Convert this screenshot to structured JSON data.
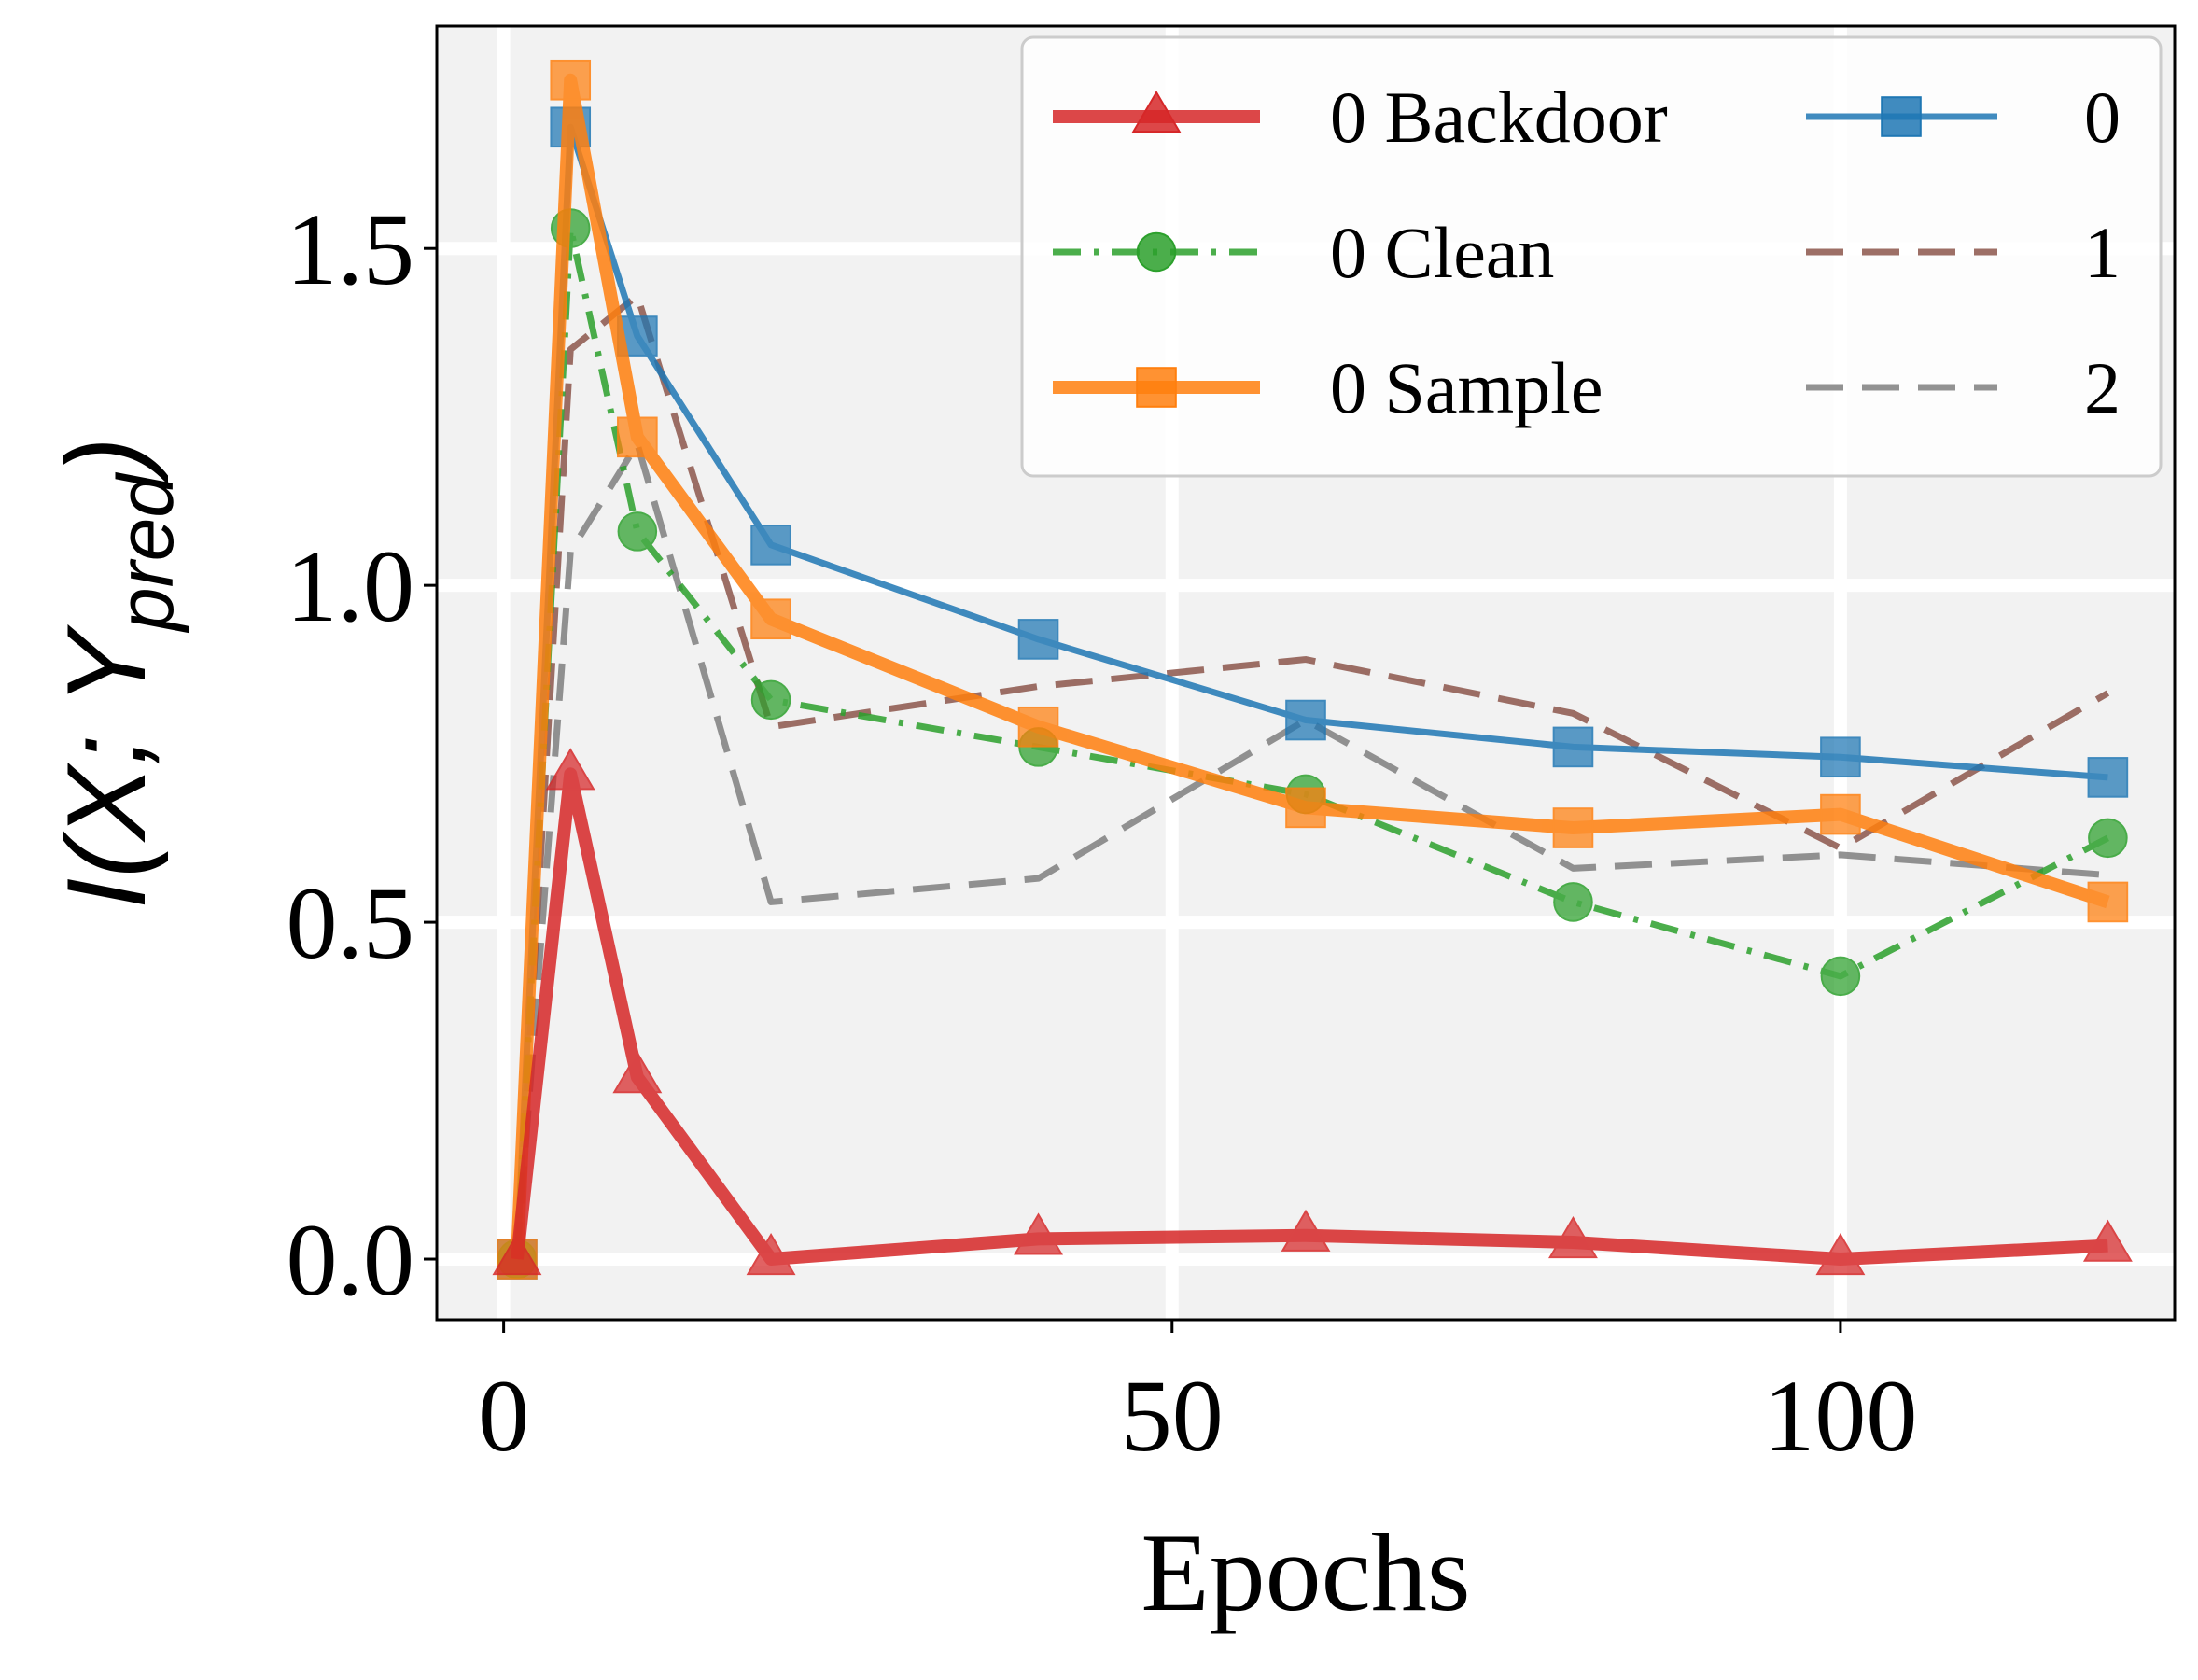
{
  "chart_data": {
    "type": "line",
    "xlabel": "Epochs",
    "ylabel": "I(X; Y",
    "ylabel_subscript": "pred",
    "ylabel_close": ")",
    "xlim": [
      -5,
      125
    ],
    "ylim": [
      -0.09,
      1.83
    ],
    "xticks": [
      0,
      50,
      100
    ],
    "xtick_labels": [
      "0",
      "50",
      "100"
    ],
    "yticks": [
      0.0,
      0.5,
      1.0,
      1.5
    ],
    "ytick_labels": [
      "0.0",
      "0.5",
      "1.0",
      "1.5"
    ],
    "grid": true,
    "legend_placement": "top-right",
    "legend_columns": 2,
    "x": [
      1,
      5,
      10,
      20,
      40,
      60,
      80,
      100,
      120
    ],
    "series": [
      {
        "name": "0 Backdoor",
        "color": "#d62728",
        "style": "solid",
        "marker": "triangle",
        "width": "thick",
        "values": [
          0.0,
          0.72,
          0.27,
          0.0,
          0.03,
          0.035,
          0.025,
          0.0,
          0.02
        ]
      },
      {
        "name": "0 Clean",
        "color": "#2ca02c",
        "style": "dashdot",
        "marker": "circle",
        "width": "normal",
        "values": [
          0.0,
          1.53,
          1.08,
          0.83,
          0.76,
          0.69,
          0.53,
          0.42,
          0.625
        ]
      },
      {
        "name": "0 Sample",
        "color": "#ff7f0e",
        "style": "solid",
        "marker": "square",
        "width": "thick",
        "values": [
          0.0,
          1.75,
          1.22,
          0.95,
          0.79,
          0.67,
          0.64,
          0.66,
          0.53
        ]
      },
      {
        "name": "0",
        "color": "#1f77b4",
        "style": "solid",
        "marker": "square",
        "width": "normal",
        "values": [
          0.0,
          1.68,
          1.37,
          1.06,
          0.92,
          0.8,
          0.76,
          0.745,
          0.715
        ]
      },
      {
        "name": "1",
        "color": "#8c564b",
        "style": "dashed",
        "marker": "none",
        "width": "normal",
        "values": [
          0.0,
          1.35,
          1.43,
          0.79,
          0.85,
          0.89,
          0.81,
          0.61,
          0.84
        ]
      },
      {
        "name": "2",
        "color": "#7f7f7f",
        "style": "dashed",
        "marker": "none",
        "width": "normal",
        "values": [
          0.0,
          1.05,
          1.21,
          0.53,
          0.565,
          0.8,
          0.58,
          0.6,
          0.57
        ]
      }
    ]
  }
}
